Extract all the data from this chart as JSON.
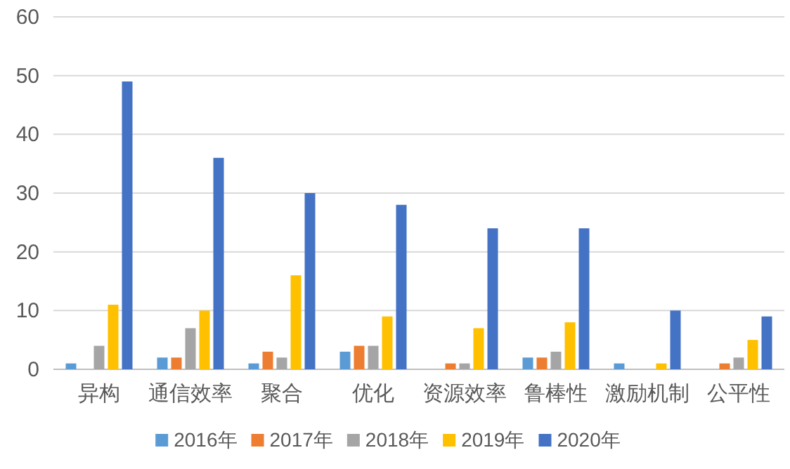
{
  "chart_data": {
    "type": "bar",
    "categories": [
      "异构",
      "通信效率",
      "聚合",
      "优化",
      "资源效率",
      "鲁棒性",
      "激励机制",
      "公平性"
    ],
    "series": [
      {
        "name": "2016年",
        "color": "#5b9bd5",
        "values": [
          1,
          2,
          1,
          3,
          0,
          2,
          1,
          0
        ]
      },
      {
        "name": "2017年",
        "color": "#ed7d31",
        "values": [
          0,
          2,
          3,
          4,
          1,
          2,
          0,
          1
        ]
      },
      {
        "name": "2018年",
        "color": "#a5a5a5",
        "values": [
          4,
          7,
          2,
          4,
          1,
          3,
          0,
          2
        ]
      },
      {
        "name": "2019年",
        "color": "#ffc000",
        "values": [
          11,
          10,
          16,
          9,
          7,
          8,
          1,
          5
        ]
      },
      {
        "name": "2020年",
        "color": "#4472c4",
        "values": [
          49,
          36,
          30,
          28,
          24,
          24,
          10,
          9
        ]
      }
    ],
    "ylim": [
      0,
      60
    ],
    "yticks": [
      0,
      10,
      20,
      30,
      40,
      50,
      60
    ],
    "grid": "y",
    "legend": "bottom"
  }
}
